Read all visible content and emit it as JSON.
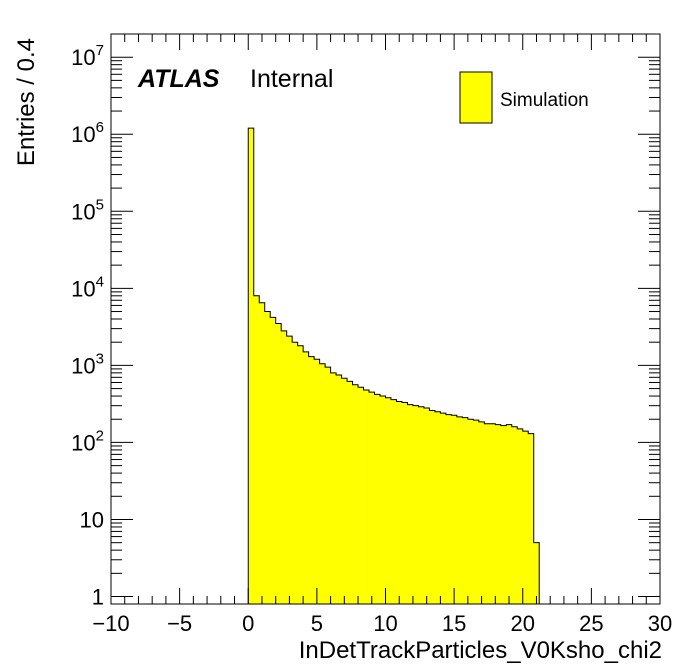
{
  "chart_data": {
    "type": "bar",
    "title": "",
    "xlabel": "InDetTrackParticles_V0Ksho_chi2",
    "ylabel": "Entries / 0.4",
    "xlim": [
      -10,
      30
    ],
    "ylim": [
      0.8,
      20000000
    ],
    "yscale": "log",
    "bin_width": 0.4,
    "x_ticks": [
      -10,
      -5,
      0,
      5,
      10,
      15,
      20,
      25,
      30
    ],
    "x_tick_labels": [
      "−10",
      "−5",
      "0",
      "5",
      "10",
      "15",
      "20",
      "25",
      "30"
    ],
    "y_ticks": [
      {
        "value": 1,
        "base": "1",
        "exp": ""
      },
      {
        "value": 10,
        "base": "10",
        "exp": ""
      },
      {
        "value": 100,
        "base": "10",
        "exp": "2"
      },
      {
        "value": 1000,
        "base": "10",
        "exp": "3"
      },
      {
        "value": 10000,
        "base": "10",
        "exp": "4"
      },
      {
        "value": 100000,
        "base": "10",
        "exp": "5"
      },
      {
        "value": 1000000,
        "base": "10",
        "exp": "6"
      },
      {
        "value": 10000000,
        "base": "10",
        "exp": "7"
      }
    ],
    "atlas_label": "ATLAS",
    "atlas_status": "Internal",
    "legend_position": "top-right",
    "series": [
      {
        "name": "Simulation",
        "color": "#ffff00",
        "edge_color": "#000000",
        "bin_start": 0,
        "values": [
          1200000,
          8000,
          6500,
          5000,
          4200,
          3500,
          2800,
          2400,
          2000,
          1800,
          1500,
          1300,
          1200,
          1050,
          950,
          800,
          750,
          680,
          620,
          560,
          520,
          480,
          450,
          420,
          400,
          380,
          360,
          340,
          330,
          310,
          300,
          290,
          280,
          260,
          250,
          240,
          230,
          225,
          215,
          210,
          200,
          195,
          185,
          175,
          175,
          170,
          165,
          170,
          160,
          150,
          140,
          130,
          5
        ]
      }
    ]
  }
}
